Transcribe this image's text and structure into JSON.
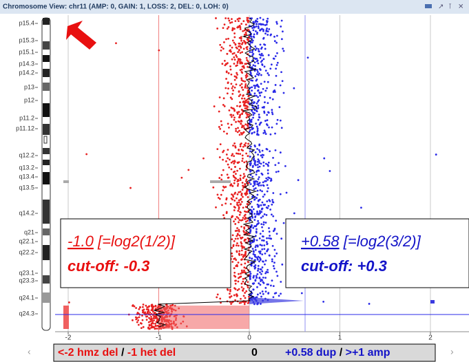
{
  "window": {
    "title": "Chromosome View: chr11 (AMP: 0, GAIN: 1, LOSS: 2, DEL: 0, LOH: 0)"
  },
  "bands": [
    "p15.4",
    "p15.3",
    "p15.1",
    "p14.3",
    "p14.2",
    "p13",
    "p12",
    "p11.2",
    "p11.12",
    "q12.2",
    "q13.2",
    "q13.4",
    "q13.5",
    "q14.2",
    "q21",
    "q22.1",
    "q22.2",
    "q23.1",
    "q23.3",
    "q24.1",
    "q24.3"
  ],
  "xticks": [
    -2,
    -1,
    0,
    1,
    2
  ],
  "annotations": [
    {
      "value": "-1.0",
      "formula": " [=log2(1/2)]",
      "cutoff": "cut-off: -0.3"
    },
    {
      "value": "+0.58",
      "formula": " [=log2(3/2)]",
      "cutoff": "cut-off: +0.3"
    }
  ],
  "legend": [
    "<-2 hmz del",
    " / ",
    "-1 het del",
    "0",
    "+0.58 dup",
    " / ",
    ">+1 amp"
  ]
}
